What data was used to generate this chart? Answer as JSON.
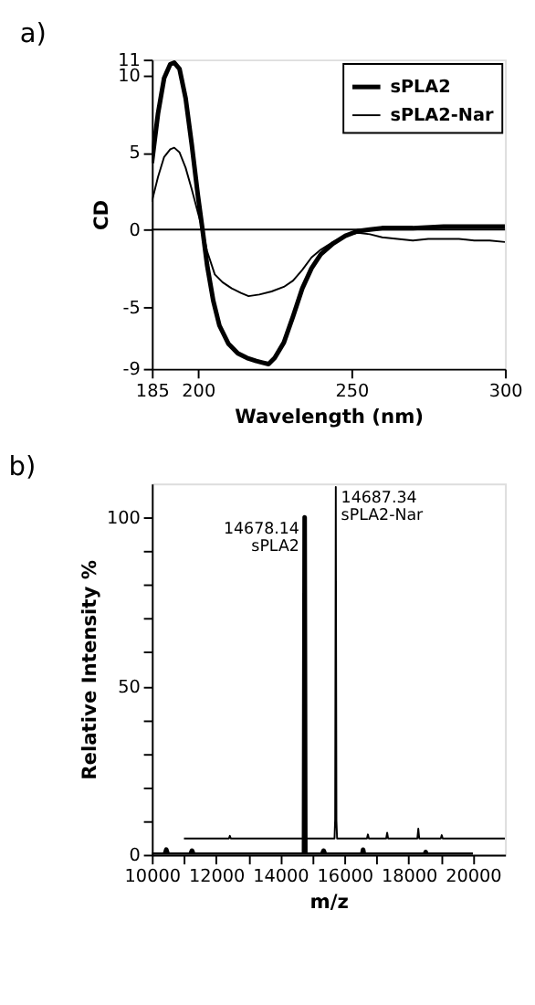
{
  "chart_data": [
    {
      "type": "line",
      "title": "a)",
      "xlabel": "Wavelength (nm)",
      "ylabel": "CD",
      "xlim": [
        185,
        300
      ],
      "xticks": [
        185,
        200,
        250,
        300
      ],
      "ylim": [
        -9,
        11
      ],
      "yticks": [
        -9,
        -5,
        0,
        5,
        10,
        11
      ],
      "legend": "top right",
      "grid": false,
      "ref_lines": [
        {
          "axis": "y",
          "value": 0,
          "color": "#000000"
        }
      ],
      "series": [
        {
          "name": "sPLA2",
          "color": "#000000",
          "x": [
            185,
            187,
            189,
            191,
            192.3,
            194,
            196,
            198,
            200,
            201.5,
            203,
            205,
            207,
            210,
            213,
            216,
            219,
            221,
            223,
            225,
            228,
            231,
            234,
            237,
            240,
            244,
            248,
            252,
            256,
            260,
            270,
            280,
            290,
            300
          ],
          "values": [
            4.3,
            7.5,
            9.8,
            10.7,
            10.8,
            10.4,
            8.5,
            5.5,
            2.2,
            0,
            -2.3,
            -4.6,
            -6.2,
            -7.4,
            -8.0,
            -8.3,
            -8.5,
            -8.6,
            -8.7,
            -8.3,
            -7.3,
            -5.6,
            -3.8,
            -2.5,
            -1.6,
            -0.9,
            -0.4,
            -0.1,
            0.0,
            0.1,
            0.1,
            0.2,
            0.2,
            0.2
          ]
        },
        {
          "name": "sPLA2-Nar",
          "color": "#000000",
          "x": [
            185,
            187,
            189,
            191,
            192.3,
            194,
            196,
            198,
            200,
            201.5,
            203,
            205.5,
            208,
            211,
            214,
            216.5,
            220,
            224,
            228,
            231,
            234,
            237,
            240,
            244,
            248,
            252,
            256,
            260,
            265,
            270,
            275,
            280,
            285,
            290,
            295,
            300
          ],
          "values": [
            1.8,
            3.4,
            4.7,
            5.2,
            5.3,
            5.0,
            4.0,
            2.6,
            1.1,
            0,
            -1.4,
            -2.9,
            -3.4,
            -3.8,
            -4.1,
            -4.3,
            -4.2,
            -4.0,
            -3.7,
            -3.3,
            -2.6,
            -1.8,
            -1.3,
            -0.8,
            -0.4,
            -0.2,
            -0.3,
            -0.5,
            -0.6,
            -0.7,
            -0.6,
            -0.6,
            -0.6,
            -0.7,
            -0.7,
            -0.8
          ]
        }
      ]
    },
    {
      "type": "line",
      "title": "b)",
      "xlabel": "m/z",
      "ylabel": "Relative Intensity %",
      "xlim": [
        10000,
        21000
      ],
      "xticks": [
        10000,
        {
          "value": 11000,
          "label": null
        },
        12000,
        {
          "value": 13000,
          "label": null
        },
        14000,
        {
          "value": 15000,
          "label": null
        },
        16000,
        {
          "value": 17000,
          "label": null
        },
        18000,
        {
          "value": 19000,
          "label": null
        },
        20000
      ],
      "ylim": [
        0,
        110
      ],
      "yticks": [
        0,
        {
          "value": 10,
          "label": null
        },
        {
          "value": 20,
          "label": null
        },
        {
          "value": 30,
          "label": null
        },
        {
          "value": 40,
          "label": null
        },
        50,
        {
          "value": 60,
          "label": null
        },
        {
          "value": 70,
          "label": null
        },
        {
          "value": 80,
          "label": null
        },
        {
          "value": 90,
          "label": null
        },
        100
      ],
      "grid": false,
      "annotations": [
        {
          "text": "14678.14\nsPLA2",
          "x": 14760,
          "y": 100
        },
        {
          "text": "14687.34\nsPLA2-Nar",
          "x": 15730,
          "y": 104
        }
      ],
      "series": [
        {
          "color": "#000000",
          "x": [
            10000,
            10400,
            10450,
            10500,
            11200,
            11250,
            11300,
            14740,
            14760,
            14780,
            15300,
            15350,
            15400,
            16550,
            16580,
            16610,
            18500,
            18530,
            18560,
            20000
          ],
          "values": [
            0,
            0,
            1.5,
            0,
            0,
            1.2,
            0,
            0,
            100,
            0,
            0,
            1.2,
            0,
            0,
            1.5,
            0,
            0,
            0.8,
            0,
            0
          ]
        },
        {
          "color": "#000000",
          "x": [
            11000,
            12400,
            12430,
            12460,
            14740,
            14760,
            14780,
            15690,
            15710,
            15730,
            15750,
            15770,
            16700,
            16730,
            16760,
            17300,
            17330,
            17360,
            18270,
            18300,
            18330,
            19000,
            19030,
            19060,
            21000
          ],
          "values": [
            4.8,
            4.8,
            5.6,
            4.8,
            4.8,
            6.0,
            4.8,
            4.8,
            10.4,
            109,
            10.0,
            4.8,
            4.8,
            6.0,
            4.8,
            4.8,
            6.5,
            4.8,
            4.8,
            7.7,
            4.8,
            4.8,
            5.8,
            4.8,
            4.8
          ]
        }
      ]
    }
  ]
}
